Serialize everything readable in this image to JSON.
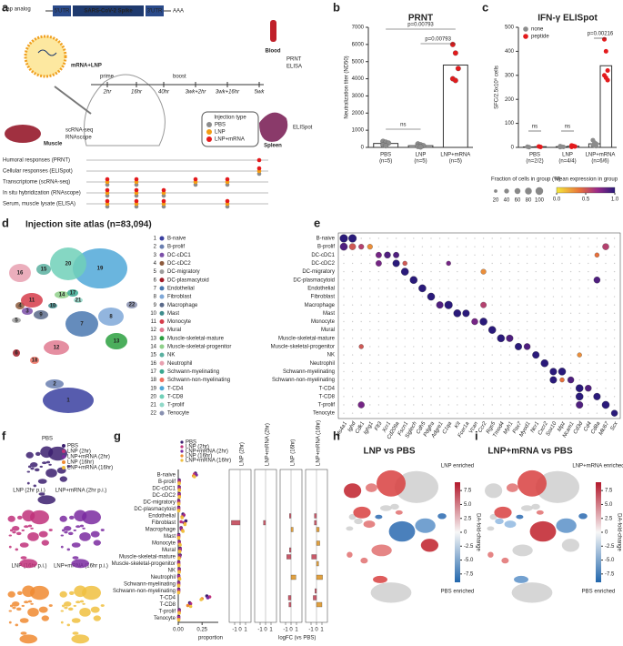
{
  "panel_labels": [
    "a",
    "b",
    "c",
    "d",
    "e",
    "f",
    "g",
    "h",
    "i"
  ],
  "schematic": {
    "cap": "Cap analog",
    "utr5": "5'UTR",
    "gene": "SARS-CoV-2 Spike",
    "utr3": "3'UTR",
    "polya": "AAA",
    "lnp": "mRNA+LNP",
    "prime": "prime",
    "boost": "boost",
    "timepoints": [
      "2hr",
      "16hr",
      "40hr",
      "3wk+2hr",
      "3wk+16hr",
      "5wk"
    ],
    "blood": "Blood",
    "blood_assays": [
      "PRNT",
      "ELISA"
    ],
    "muscle": "Muscle",
    "muscle_assays": [
      "scRNA-seq",
      "RNAscope"
    ],
    "spleen": "Spleen",
    "spleen_assay": "ELISpot",
    "legend_title": "Injection type",
    "legend": [
      {
        "name": "PBS",
        "color": "#8c8c8c"
      },
      {
        "name": "LNP",
        "color": "#f39c12"
      },
      {
        "name": "LNP+mRNA",
        "color": "#e31a1c"
      }
    ],
    "assays": [
      "Humoral responses (PRNT)",
      "Cellular responses (ELISpot)",
      "Transcriptome (scRNA-seq)",
      "In situ hybridization (RNAscope)",
      "Serum, muscle lysate (ELISA)"
    ]
  },
  "chart_data": [
    {
      "type": "bar",
      "title": "PRNT",
      "ylabel": "Neutralization titer (ND50)",
      "categories": [
        "PBS",
        "LNP",
        "LNP+mRNA"
      ],
      "n_labels": [
        "(n=5)",
        "(n=5)",
        "(n=5)"
      ],
      "values": [
        230,
        100,
        4800
      ],
      "points": [
        [
          350,
          300,
          250,
          150,
          100
        ],
        [
          200,
          150,
          100,
          60,
          30
        ],
        [
          6000,
          5500,
          4600,
          4000,
          3900
        ]
      ],
      "point_colors": [
        "#8c8c8c",
        "#8c8c8c",
        "#e31a1c"
      ],
      "ylim": [
        0,
        7000
      ],
      "yticks": [
        0,
        1000,
        2000,
        3000,
        4000,
        5000,
        6000,
        7000
      ],
      "annotations": [
        "ns",
        "p=0.00793",
        "p=0.00793"
      ]
    },
    {
      "type": "groupbar",
      "title": "IFN-γ ELISpot",
      "ylabel": "SFC/2.5x10⁵ cells",
      "categories": [
        "PBS",
        "LNP",
        "LNP+mRNA"
      ],
      "n_labels": [
        "(n=2/2)",
        "(n=4/4)",
        "(n=6/6)"
      ],
      "series": [
        {
          "name": "none",
          "color": "#8c8c8c",
          "values": [
            2,
            3,
            15
          ],
          "points": [
            [
              3,
              1
            ],
            [
              5,
              3,
              2,
              1
            ],
            [
              30,
              20,
              15,
              10,
              8,
              5
            ]
          ]
        },
        {
          "name": "peptide",
          "color": "#e31a1c",
          "values": [
            3,
            5,
            340
          ],
          "points": [
            [
              4,
              2
            ],
            [
              8,
              6,
              4,
              2
            ],
            [
              450,
              400,
              320,
              300,
              290,
              280
            ]
          ]
        }
      ],
      "ylim": [
        0,
        500
      ],
      "yticks": [
        0,
        100,
        200,
        300,
        400,
        500
      ],
      "annotations": [
        "ns",
        "ns",
        "p=0.00216"
      ]
    }
  ],
  "atlas": {
    "title": "Injection site atlas (n=83,094)",
    "clusters": [
      {
        "id": 1,
        "name": "B-naive",
        "color": "#3a3fa0"
      },
      {
        "id": 2,
        "name": "B-prolif",
        "color": "#6a7fb0"
      },
      {
        "id": 3,
        "name": "DC-cDC1",
        "color": "#7b4fa8"
      },
      {
        "id": 4,
        "name": "DC-cDC2",
        "color": "#8c5a3c"
      },
      {
        "id": 5,
        "name": "DC-migratory",
        "color": "#9e9e9e"
      },
      {
        "id": 6,
        "name": "DC-plasmacytoid",
        "color": "#a01c28"
      },
      {
        "id": 7,
        "name": "Endothelial",
        "color": "#4a78b0"
      },
      {
        "id": 8,
        "name": "Fibroblast",
        "color": "#7fa8d8"
      },
      {
        "id": 9,
        "name": "Macrophage",
        "color": "#5a6a8a"
      },
      {
        "id": 10,
        "name": "Mast",
        "color": "#3e8c8c"
      },
      {
        "id": 11,
        "name": "Monocyte",
        "color": "#d63c4a"
      },
      {
        "id": 12,
        "name": "Mural",
        "color": "#e07a90"
      },
      {
        "id": 13,
        "name": "Muscle-skeletal-mature",
        "color": "#2ca040"
      },
      {
        "id": 14,
        "name": "Muscle-skeletal-progenitor",
        "color": "#8fd08a"
      },
      {
        "id": 15,
        "name": "NK",
        "color": "#5ab0a0"
      },
      {
        "id": 16,
        "name": "Neutrophil",
        "color": "#e8a0b0"
      },
      {
        "id": 17,
        "name": "Schwann-myelinating",
        "color": "#3aa890"
      },
      {
        "id": 18,
        "name": "Schwann-non-myelinating",
        "color": "#f07060"
      },
      {
        "id": 19,
        "name": "T-CD4",
        "color": "#50a8d8"
      },
      {
        "id": 20,
        "name": "T-CD8",
        "color": "#70d0b8"
      },
      {
        "id": 21,
        "name": "T-prolif",
        "color": "#90d8c8"
      },
      {
        "id": 22,
        "name": "Tenocyte",
        "color": "#8890b0"
      }
    ]
  },
  "dotplot": {
    "genes": [
      "Ms4a1",
      "Ighd",
      "Cdk1",
      "Ighg1",
      "Flt3",
      "Xcr1",
      "Cd209a",
      "Fscn1",
      "Siglech",
      "Cdh5",
      "Pdgfra",
      "Adgre1",
      "C1qa",
      "Kit",
      "Fcer1a",
      "Vcan",
      "Ccr2",
      "Rgs5",
      "Tmod4",
      "Myh1",
      "Pax7",
      "Myod1",
      "Ncr1",
      "Cxcr2",
      "Sox10",
      "Mpz",
      "Ncam1",
      "Cd3d",
      "Cd4",
      "Cd8a",
      "Mki67",
      "Scx"
    ],
    "dots": [
      [
        0,
        0,
        90,
        1
      ],
      [
        0,
        1,
        90,
        1
      ],
      [
        1,
        0,
        80,
        0.9
      ],
      [
        1,
        1,
        60,
        0.5
      ],
      [
        1,
        2,
        40,
        0.6
      ],
      [
        1,
        3,
        40,
        0.3
      ],
      [
        1,
        30,
        60,
        0.6
      ],
      [
        2,
        4,
        50,
        0.8
      ],
      [
        2,
        5,
        60,
        0.9
      ],
      [
        2,
        6,
        50,
        0.9
      ],
      [
        2,
        29,
        30,
        0.4
      ],
      [
        3,
        4,
        50,
        0.8
      ],
      [
        3,
        6,
        70,
        1
      ],
      [
        3,
        7,
        30,
        0.5
      ],
      [
        3,
        12,
        30,
        0.8
      ],
      [
        4,
        7,
        80,
        1
      ],
      [
        4,
        16,
        40,
        0.3
      ],
      [
        5,
        8,
        80,
        1
      ],
      [
        5,
        29,
        60,
        0.9
      ],
      [
        6,
        9,
        80,
        1
      ],
      [
        7,
        10,
        80,
        1
      ],
      [
        8,
        11,
        70,
        0.9
      ],
      [
        8,
        12,
        90,
        1
      ],
      [
        8,
        16,
        50,
        0.6
      ],
      [
        9,
        13,
        80,
        1
      ],
      [
        9,
        14,
        70,
        1
      ],
      [
        10,
        15,
        60,
        0.8
      ],
      [
        10,
        16,
        80,
        1
      ],
      [
        11,
        17,
        80,
        1
      ],
      [
        12,
        18,
        80,
        1
      ],
      [
        12,
        19,
        70,
        0.9
      ],
      [
        13,
        20,
        70,
        1
      ],
      [
        13,
        21,
        60,
        0.9
      ],
      [
        13,
        2,
        30,
        0.5
      ],
      [
        14,
        22,
        70,
        1
      ],
      [
        14,
        27,
        30,
        0.3
      ],
      [
        15,
        23,
        80,
        1
      ],
      [
        16,
        24,
        70,
        1
      ],
      [
        16,
        25,
        80,
        1
      ],
      [
        17,
        24,
        70,
        1
      ],
      [
        17,
        26,
        60,
        0.9
      ],
      [
        17,
        25,
        30,
        0.4
      ],
      [
        18,
        27,
        80,
        1
      ],
      [
        18,
        28,
        60,
        0.9
      ],
      [
        19,
        27,
        80,
        1
      ],
      [
        19,
        29,
        70,
        1
      ],
      [
        20,
        27,
        70,
        0.9
      ],
      [
        20,
        30,
        80,
        1
      ],
      [
        20,
        2,
        60,
        0.8
      ],
      [
        21,
        31,
        60,
        1
      ]
    ],
    "size_legend": {
      "title": "Fraction of cells in group (%)",
      "ticks": [
        20,
        40,
        60,
        80,
        100
      ]
    },
    "color_legend": {
      "title": "Mean expression in group",
      "ticks": [
        {
          "value": 0,
          "label": "0.0"
        },
        {
          "value": 0.5,
          "label": "0.5"
        },
        {
          "value": 1,
          "label": "1.0"
        }
      ]
    }
  },
  "conditions": {
    "titles": [
      "PBS",
      "LNP (2hr p.i.)",
      "LNP+mRNA (2hr p.i.)",
      "LNP (16hr p.i.)",
      "LNP+mRNA (16hr p.i.)"
    ],
    "legend": [
      {
        "name": "PBS",
        "color": "#3b1f6e"
      },
      {
        "name": "LNP (2hr)",
        "color": "#c0307a"
      },
      {
        "name": "LNP+mRNA (2hr)",
        "color": "#7a2aa0"
      },
      {
        "name": "LNP (16hr)",
        "color": "#f08a30"
      },
      {
        "name": "LNP+mRNA (16hr)",
        "color": "#f0c040"
      }
    ]
  },
  "composition": {
    "xlabel": "proportion",
    "xlim": [
      0,
      0.42
    ],
    "xticks": [
      {
        "value": 0,
        "label": "0.00"
      },
      {
        "value": 0.25,
        "label": "0.25"
      }
    ],
    "series": [
      [
        0.18,
        0.01,
        0.01,
        0.01,
        0.005,
        0.005,
        0.05,
        0.08,
        0.03,
        0.005,
        0.01,
        0.02,
        0.02,
        0.005,
        0.01,
        0.005,
        0.005,
        0.005,
        0.3,
        0.12,
        0.01,
        0.005
      ],
      [
        0.17,
        0.01,
        0.01,
        0.01,
        0.005,
        0.005,
        0.06,
        0.03,
        0.03,
        0.005,
        0.01,
        0.02,
        0.015,
        0.005,
        0.01,
        0.005,
        0.005,
        0.005,
        0.33,
        0.13,
        0.01,
        0.005
      ],
      [
        0.19,
        0.01,
        0.01,
        0.01,
        0.005,
        0.005,
        0.05,
        0.06,
        0.035,
        0.005,
        0.012,
        0.02,
        0.015,
        0.005,
        0.01,
        0.006,
        0.005,
        0.005,
        0.31,
        0.12,
        0.01,
        0.005
      ],
      [
        0.16,
        0.01,
        0.01,
        0.012,
        0.006,
        0.005,
        0.04,
        0.07,
        0.045,
        0.005,
        0.015,
        0.015,
        0.01,
        0.006,
        0.01,
        0.012,
        0.005,
        0.005,
        0.25,
        0.1,
        0.01,
        0.005
      ],
      [
        0.17,
        0.01,
        0.012,
        0.012,
        0.006,
        0.005,
        0.04,
        0.07,
        0.05,
        0.005,
        0.02,
        0.015,
        0.009,
        0.007,
        0.01,
        0.015,
        0.005,
        0.004,
        0.24,
        0.13,
        0.01,
        0.005
      ]
    ],
    "fc_xlabel": "logFC (vs PBS)",
    "fc_titles": [
      "LNP (2hr)",
      "LNP+mRNA (2hr)",
      "LNP (16hr)",
      "LNP+mRNA (16hr)"
    ],
    "fc_xlim": [
      -2,
      2
    ],
    "fc_xticks": [
      -1,
      0,
      1
    ],
    "fc": [
      [
        null,
        null,
        null,
        null,
        null,
        null,
        null,
        -1.6,
        null,
        null,
        null,
        null,
        null,
        null,
        null,
        null,
        null,
        null,
        null,
        null,
        null,
        null
      ],
      [
        null,
        null,
        null,
        null,
        null,
        null,
        null,
        -0.4,
        null,
        null,
        null,
        null,
        null,
        null,
        null,
        null,
        null,
        null,
        null,
        null,
        null,
        null
      ],
      [
        null,
        null,
        null,
        null,
        null,
        null,
        -0.3,
        null,
        0.4,
        null,
        null,
        -0.3,
        -0.8,
        null,
        null,
        0.9,
        null,
        null,
        -0.5,
        -0.4,
        null,
        null
      ],
      [
        null,
        null,
        null,
        null,
        null,
        null,
        -0.4,
        -0.4,
        0.5,
        null,
        0.6,
        null,
        -0.9,
        0.4,
        null,
        1.1,
        null,
        -0.3,
        -0.6,
        1,
        null,
        null
      ]
    ]
  },
  "da": {
    "panels": [
      {
        "title": "LNP vs PBS",
        "top": "LNP enriched",
        "bottom": "PBS enriched"
      },
      {
        "title": "LNP+mRNA vs PBS",
        "top": "LNP+mRNA enriched",
        "bottom": "PBS enriched"
      }
    ],
    "colorbar_label": "DA-fold-change",
    "clim": [
      -9,
      9
    ],
    "ticks": [
      {
        "value": 7.5,
        "label": "7.5"
      },
      {
        "value": 5,
        "label": "5.0"
      },
      {
        "value": 2.5,
        "label": "2.5"
      },
      0,
      {
        "value": -2.5,
        "label": "-2.5"
      },
      {
        "value": -5,
        "label": "-5.0"
      },
      {
        "value": -7.5,
        "label": "-7.5"
      }
    ]
  }
}
